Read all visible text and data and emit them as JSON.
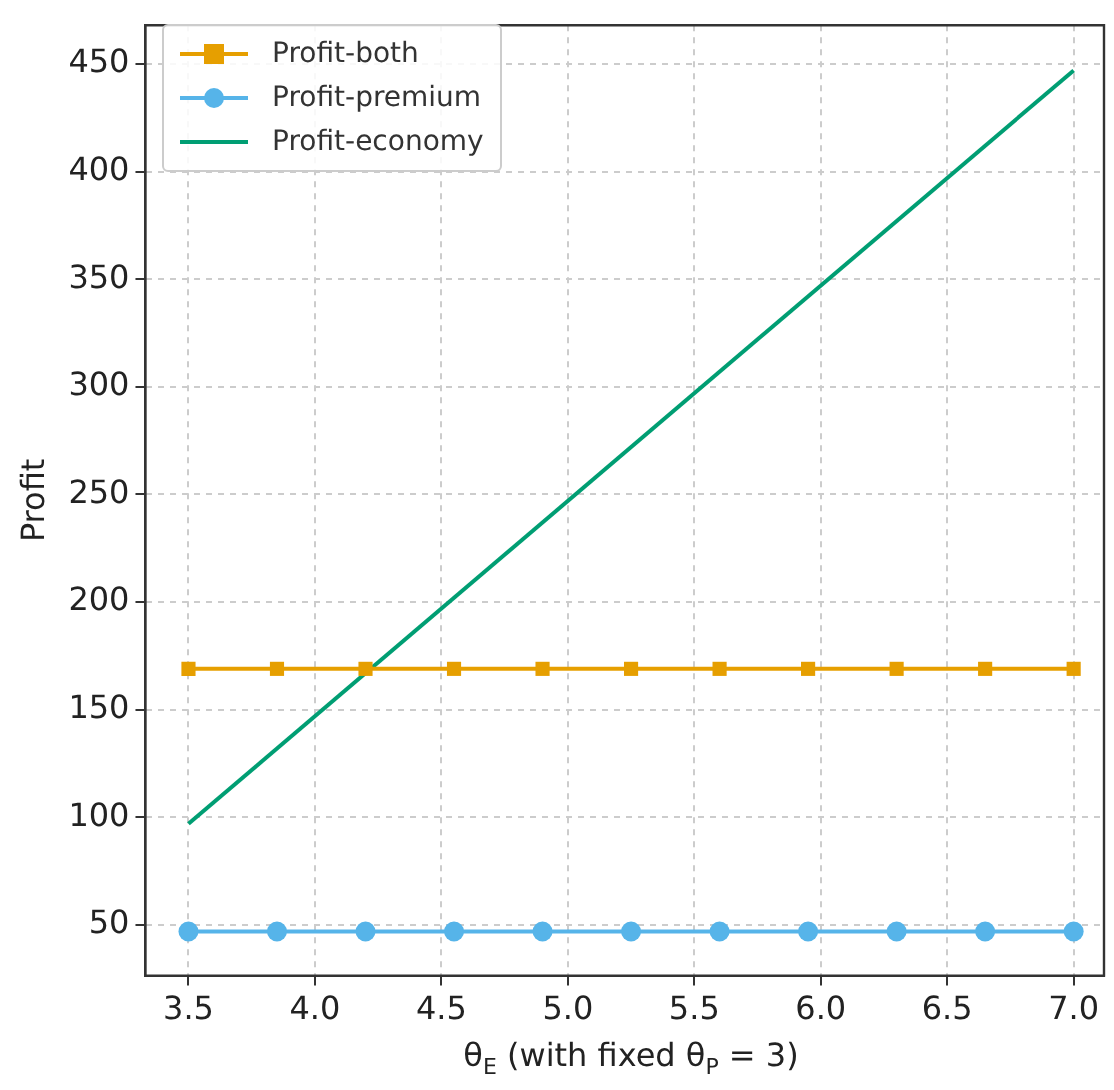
{
  "chart_data": {
    "type": "line",
    "xlabel": "θ$_{E}$ (with fixed θ$_{P}$ = 3)",
    "ylabel": "Profit",
    "x": [
      3.5,
      3.85,
      4.2,
      4.55,
      4.9,
      5.25,
      5.6,
      5.95,
      6.3,
      6.65,
      7.0
    ],
    "series": [
      {
        "name": "Profit-both",
        "color": "#e69f00",
        "marker": "square",
        "values": [
          169,
          169,
          169,
          169,
          169,
          169,
          169,
          169,
          169,
          169,
          169
        ]
      },
      {
        "name": "Profit-premium",
        "color": "#56b4e9",
        "marker": "circle",
        "values": [
          47,
          47,
          47,
          47,
          47,
          47,
          47,
          47,
          47,
          47,
          47
        ]
      },
      {
        "name": "Profit-economy",
        "color": "#009e73",
        "marker": "none",
        "x": [
          3.5,
          7.0
        ],
        "values": [
          97,
          447
        ]
      }
    ],
    "xlim": [
      3.33,
      7.12
    ],
    "xticks": [
      3.5,
      {
        "value": 4,
        "label": "4.0"
      },
      4.5,
      {
        "value": 5,
        "label": "5.0"
      },
      5.5,
      {
        "value": 6,
        "label": "6.0"
      },
      6.5,
      {
        "value": 7,
        "label": "7.0"
      }
    ],
    "ylim": [
      26.5,
      468
    ],
    "yticks": [
      50,
      100,
      150,
      200,
      250,
      300,
      350,
      400,
      450
    ],
    "grid": true,
    "legend": "top left"
  }
}
